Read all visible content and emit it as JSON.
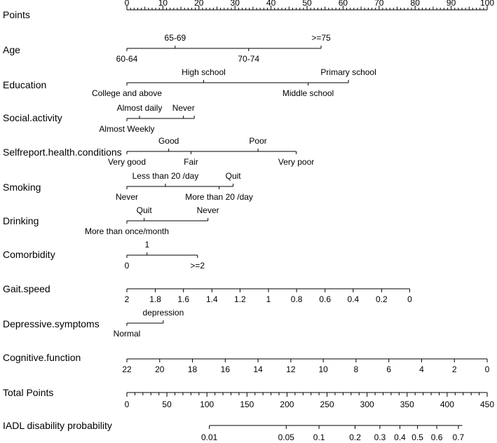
{
  "chart_data": {
    "type": "nomogram",
    "colors": {
      "ink": "#000000",
      "background": "#ffffff"
    },
    "rows": [
      {
        "id": "points",
        "label": "Points",
        "kind": "points",
        "ticks": [
          {
            "v": 0,
            "text": "0"
          },
          {
            "v": 10,
            "text": "10"
          },
          {
            "v": 20,
            "text": "20"
          },
          {
            "v": 30,
            "text": "30"
          },
          {
            "v": 40,
            "text": "40"
          },
          {
            "v": 50,
            "text": "50"
          },
          {
            "v": 60,
            "text": "60"
          },
          {
            "v": 70,
            "text": "70"
          },
          {
            "v": 80,
            "text": "80"
          },
          {
            "v": 90,
            "text": "90"
          },
          {
            "v": 100,
            "text": "100"
          }
        ],
        "minor_step": 1
      },
      {
        "id": "age",
        "label": "Age",
        "kind": "categorical",
        "levels": [
          {
            "text": "60-64",
            "points": 0,
            "side": "below"
          },
          {
            "text": "65-69",
            "points": 13.4,
            "side": "above"
          },
          {
            "text": "70-74",
            "points": 33.8,
            "side": "below"
          },
          {
            "text": ">=75",
            "points": 53.9,
            "side": "above"
          }
        ]
      },
      {
        "id": "education",
        "label": "Education",
        "kind": "categorical",
        "levels": [
          {
            "text": "College and above",
            "points": 0,
            "side": "below"
          },
          {
            "text": "High school",
            "points": 21.3,
            "side": "above"
          },
          {
            "text": "Middle school",
            "points": 50.3,
            "side": "below"
          },
          {
            "text": "Primary school",
            "points": 61.5,
            "side": "above"
          }
        ]
      },
      {
        "id": "social",
        "label": "Social.activity",
        "kind": "categorical",
        "levels": [
          {
            "text": "Almost Weekly",
            "points": 0,
            "side": "below"
          },
          {
            "text": "Almost daily",
            "points": 3.5,
            "side": "above"
          },
          {
            "text": "Never",
            "points": 15.7,
            "side": "above"
          },
          {
            "text": "",
            "points": 18.7,
            "side": "none"
          }
        ]
      },
      {
        "id": "health",
        "label": "Selfreport.health.conditions",
        "kind": "categorical",
        "levels": [
          {
            "text": "Very good",
            "points": 0,
            "side": "below"
          },
          {
            "text": "Good",
            "points": 11.6,
            "side": "above"
          },
          {
            "text": "Fair",
            "points": 17.8,
            "side": "below"
          },
          {
            "text": "Poor",
            "points": 36.4,
            "side": "above"
          },
          {
            "text": "Very poor",
            "points": 47.0,
            "side": "below"
          }
        ]
      },
      {
        "id": "smoking",
        "label": "Smoking",
        "kind": "categorical",
        "levels": [
          {
            "text": "Never",
            "points": 0,
            "side": "below"
          },
          {
            "text": "Less than 20 /day",
            "points": 10.7,
            "side": "above"
          },
          {
            "text": "More than 20 /day",
            "points": 25.6,
            "side": "below"
          },
          {
            "text": "Quit",
            "points": 29.5,
            "side": "above"
          }
        ]
      },
      {
        "id": "drinking",
        "label": "Drinking",
        "kind": "categorical",
        "levels": [
          {
            "text": "More than once/month",
            "points": 0,
            "side": "below"
          },
          {
            "text": "Quit",
            "points": 4.8,
            "side": "above"
          },
          {
            "text": "Never",
            "points": 22.5,
            "side": "above"
          }
        ]
      },
      {
        "id": "comorbidity",
        "label": "Comorbidity",
        "kind": "categorical",
        "levels": [
          {
            "text": "0",
            "points": 0,
            "side": "below"
          },
          {
            "text": "1",
            "points": 5.6,
            "side": "above"
          },
          {
            "text": ">=2",
            "points": 19.6,
            "side": "below"
          }
        ]
      },
      {
        "id": "gait",
        "label": "Gait.speed",
        "kind": "continuous",
        "points_range": [
          0,
          78.5
        ],
        "ticks": [
          {
            "text": "2",
            "points": 0
          },
          {
            "text": "1.8",
            "points": 7.9
          },
          {
            "text": "1.6",
            "points": 15.7
          },
          {
            "text": "1.4",
            "points": 23.6
          },
          {
            "text": "1.2",
            "points": 31.4
          },
          {
            "text": "1",
            "points": 39.3
          },
          {
            "text": "0.8",
            "points": 47.1
          },
          {
            "text": "0.6",
            "points": 55.0
          },
          {
            "text": "0.4",
            "points": 62.8
          },
          {
            "text": "0.2",
            "points": 70.7
          },
          {
            "text": "0",
            "points": 78.5
          }
        ]
      },
      {
        "id": "depressive",
        "label": "Depressive.symptoms",
        "kind": "categorical",
        "levels": [
          {
            "text": "Normal",
            "points": 0,
            "side": "below"
          },
          {
            "text": "depression",
            "points": 10.1,
            "side": "above"
          }
        ]
      },
      {
        "id": "cognitive",
        "label": "Cognitive.function",
        "kind": "continuous",
        "points_range": [
          0,
          100
        ],
        "ticks": [
          {
            "text": "22",
            "points": 0
          },
          {
            "text": "20",
            "points": 9.1
          },
          {
            "text": "18",
            "points": 18.2
          },
          {
            "text": "16",
            "points": 27.3
          },
          {
            "text": "14",
            "points": 36.4
          },
          {
            "text": "12",
            "points": 45.5
          },
          {
            "text": "10",
            "points": 54.5
          },
          {
            "text": "8",
            "points": 63.6
          },
          {
            "text": "6",
            "points": 72.7
          },
          {
            "text": "4",
            "points": 81.8
          },
          {
            "text": "2",
            "points": 90.9
          },
          {
            "text": "0",
            "points": 100
          }
        ]
      },
      {
        "id": "total",
        "label": "Total Points",
        "kind": "total",
        "range": [
          0,
          450
        ],
        "minor_step": 10,
        "ticks": [
          {
            "v": 0,
            "text": "0"
          },
          {
            "v": 50,
            "text": "50"
          },
          {
            "v": 100,
            "text": "100"
          },
          {
            "v": 150,
            "text": "150"
          },
          {
            "v": 200,
            "text": "200"
          },
          {
            "v": 250,
            "text": "250"
          },
          {
            "v": 300,
            "text": "300"
          },
          {
            "v": 350,
            "text": "350"
          },
          {
            "v": 400,
            "text": "400"
          },
          {
            "v": 450,
            "text": "450"
          }
        ]
      },
      {
        "id": "probability",
        "label": "IADL disability probability",
        "kind": "probability",
        "total_points_range": [
          103,
          419
        ],
        "ticks": [
          {
            "text": "0.01",
            "total_points": 103
          },
          {
            "text": "0.05",
            "total_points": 199
          },
          {
            "text": "0.1",
            "total_points": 240
          },
          {
            "text": "0.2",
            "total_points": 285
          },
          {
            "text": "0.3",
            "total_points": 316
          },
          {
            "text": "0.4",
            "total_points": 341
          },
          {
            "text": "0.5",
            "total_points": 363
          },
          {
            "text": "0.6",
            "total_points": 387
          },
          {
            "text": "0.7",
            "total_points": 414
          }
        ]
      }
    ]
  }
}
